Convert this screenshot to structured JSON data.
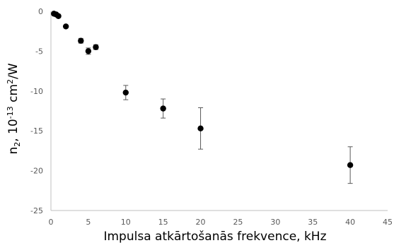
{
  "chart_data": {
    "type": "scatter",
    "title": "",
    "xlabel": "Impulsa atkārtošanās frekvence, kHz",
    "ylabel_parts": {
      "base": "n",
      "base_sub": "2",
      "mid": ", 10",
      "mid_sup": "-13",
      "tail": " cm",
      "tail_sup": "2",
      "end": "/W"
    },
    "xlim": [
      0,
      45
    ],
    "ylim": [
      -25,
      0
    ],
    "xticks": [
      "0",
      "5",
      "10",
      "15",
      "20",
      "25",
      "30",
      "35",
      "40",
      "45"
    ],
    "yticks": [
      "0",
      "-5",
      "-10",
      "-15",
      "-20",
      "-25"
    ],
    "grid": false,
    "marker_color": "#000000",
    "errorbar_color": "#595959",
    "axis_color": "#bfbfbf",
    "series": [
      {
        "points": [
          {
            "x": 0.4,
            "y": -0.3,
            "err": 0.1
          },
          {
            "x": 0.7,
            "y": -0.4,
            "err": 0.1
          },
          {
            "x": 1.0,
            "y": -0.6,
            "err": 0.1
          },
          {
            "x": 2.0,
            "y": -1.9,
            "err": 0.1
          },
          {
            "x": 4.0,
            "y": -3.7,
            "err": 0.3
          },
          {
            "x": 5.0,
            "y": -5.0,
            "err": 0.4
          },
          {
            "x": 6.0,
            "y": -4.5,
            "err": 0.3
          },
          {
            "x": 10.0,
            "y": -10.2,
            "err": 0.9
          },
          {
            "x": 15.0,
            "y": -12.2,
            "err": 1.2
          },
          {
            "x": 20.0,
            "y": -14.7,
            "err": 2.6
          },
          {
            "x": 40.0,
            "y": -19.3,
            "err": 2.3
          }
        ]
      }
    ]
  }
}
